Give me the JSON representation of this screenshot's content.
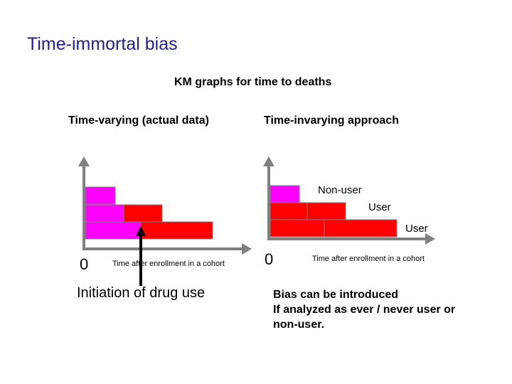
{
  "title": "Time-immortal bias",
  "subtitle": "KM graphs for time to deaths",
  "left_panel": {
    "title": "Time-varying (actual data)",
    "origin_label": "0",
    "x_axis_label": "Time after enrollment in a cohort",
    "annotation": "Initiation of drug use"
  },
  "right_panel": {
    "title": "Time-invarying approach",
    "origin_label": "0",
    "x_axis_label": "Time after enrollment in a cohort",
    "legend": {
      "nonuser": "Non-user",
      "user_row2": "User",
      "user_row3": "User"
    },
    "note": {
      "line1": "Bias can be introduced",
      "line2": "If analyzed as ever / never user or",
      "line3": "non-user."
    }
  },
  "colors": {
    "title": "#1f1f8f",
    "nonuser": "#ff00ff",
    "user": "#ff0000",
    "axis": "#808080",
    "pointer": "#000000"
  }
}
